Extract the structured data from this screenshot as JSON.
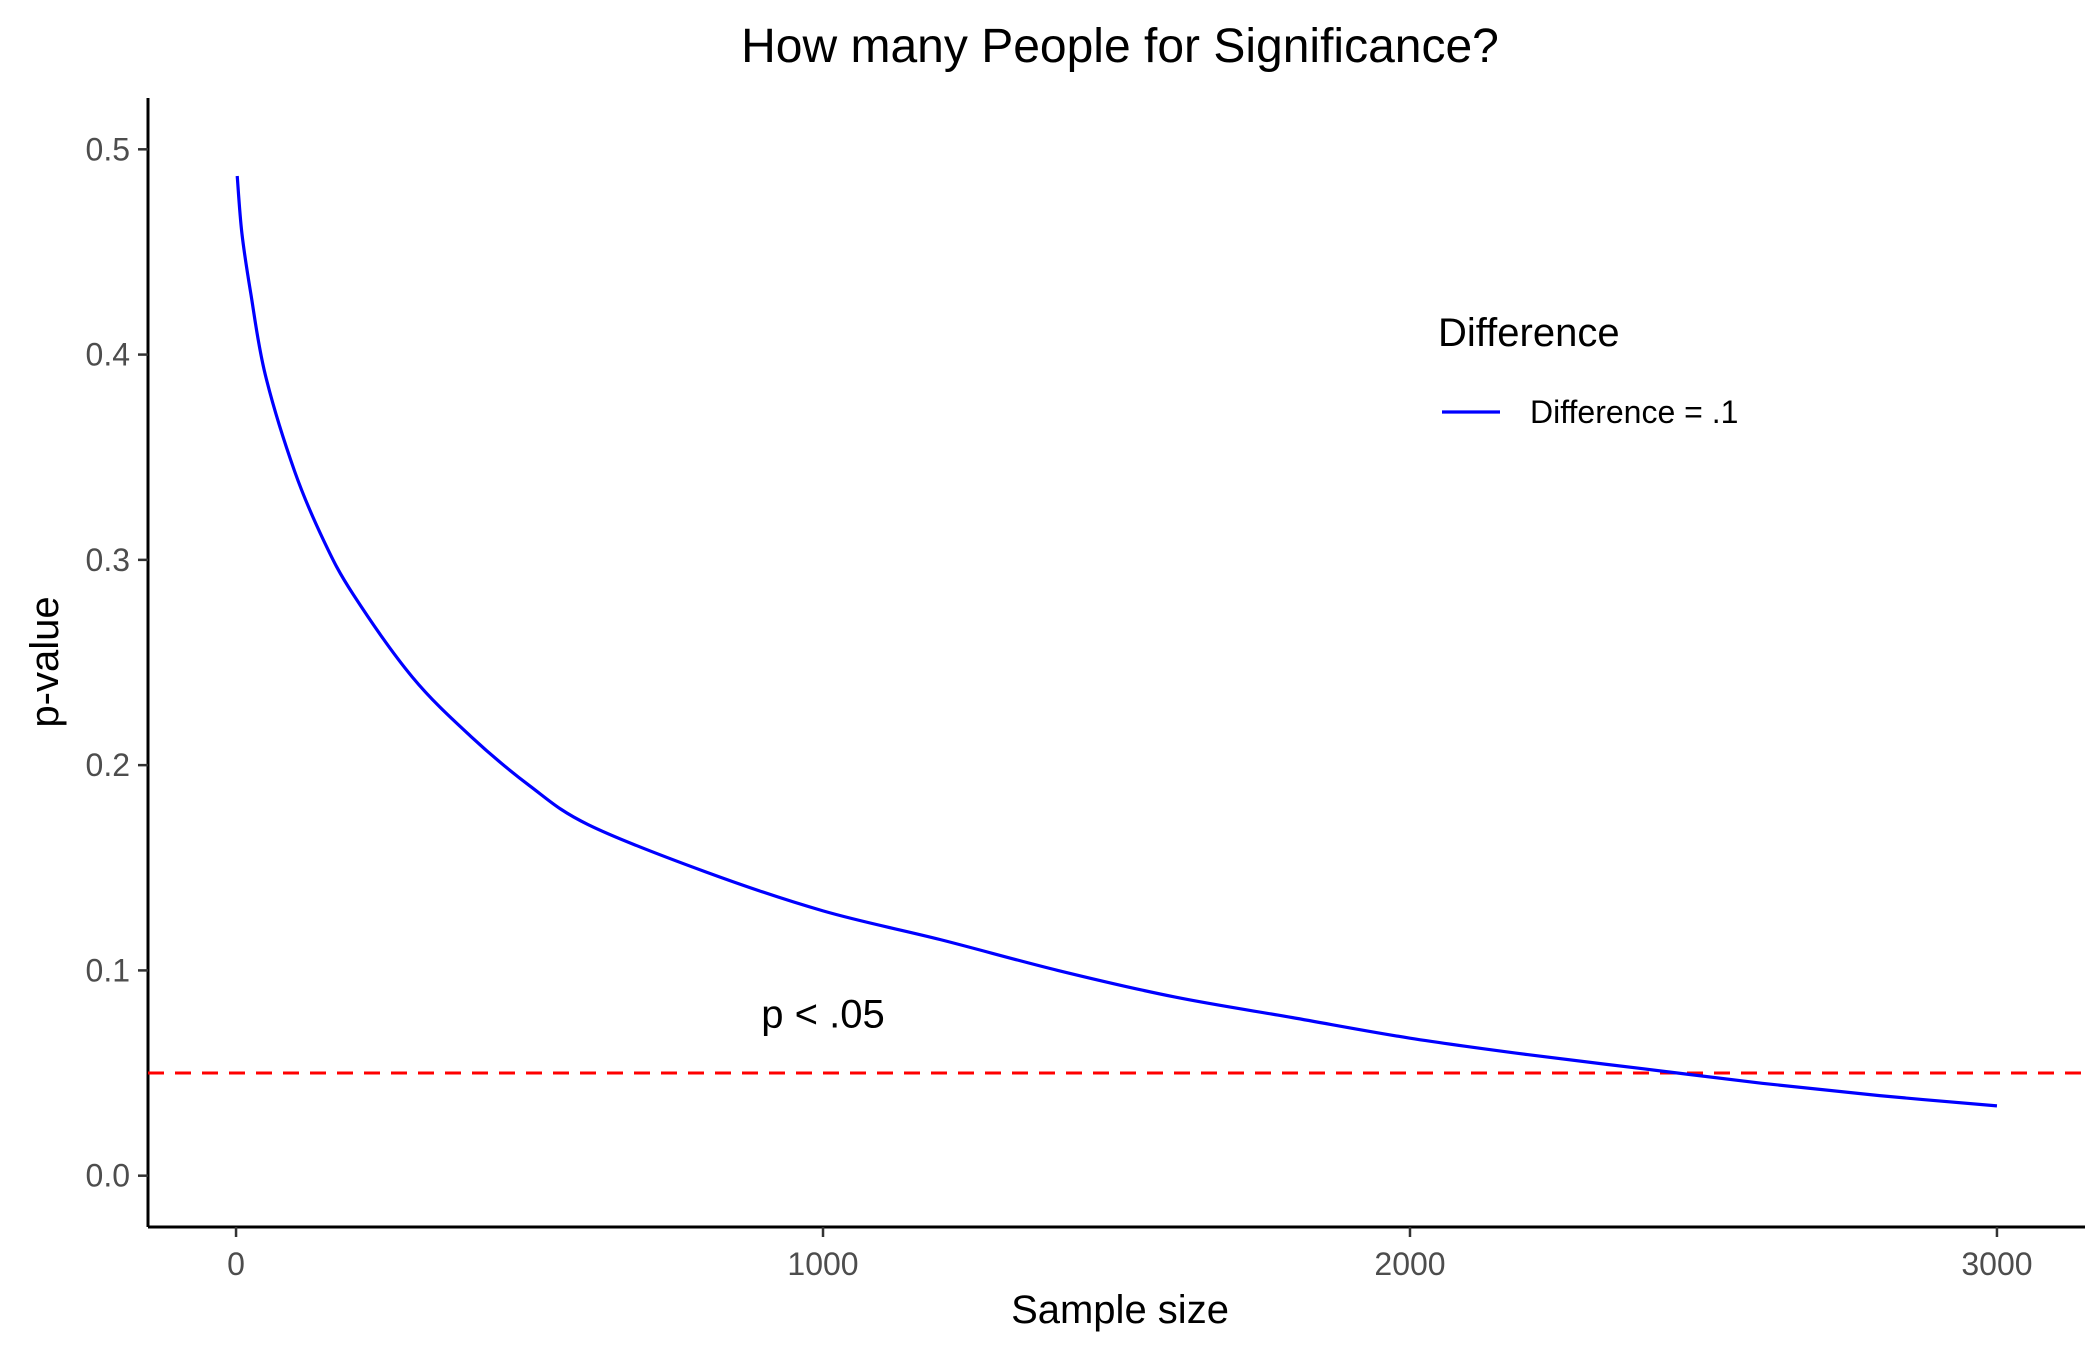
{
  "chart_data": {
    "type": "line",
    "title": "How many People for Significance?",
    "xlabel": "Sample size",
    "ylabel": "p-value",
    "xlim": [
      -150,
      3150
    ],
    "ylim": [
      -0.025,
      0.525
    ],
    "x_ticks": [
      0,
      1000,
      2000,
      3000
    ],
    "x_tick_labels": [
      "0",
      "1000",
      "2000",
      "3000"
    ],
    "y_ticks": [
      0.0,
      0.1,
      0.2,
      0.3,
      0.4,
      0.5
    ],
    "y_tick_labels": [
      "0.0",
      "0.1",
      "0.2",
      "0.3",
      "0.4",
      "0.5"
    ],
    "grid": false,
    "legend": {
      "title": "Difference",
      "position": "top-right",
      "entries": [
        {
          "label": "Difference = .1",
          "color": "#0000ff"
        }
      ]
    },
    "series": [
      {
        "name": "Difference = .1",
        "color": "#0000ff",
        "x": [
          2,
          10,
          25,
          50,
          100,
          150,
          200,
          300,
          400,
          500,
          600,
          800,
          1000,
          1200,
          1400,
          1600,
          1800,
          2000,
          2200,
          2400,
          2600,
          2800,
          3000
        ],
        "y": [
          0.487,
          0.459,
          0.43,
          0.39,
          0.343,
          0.309,
          0.283,
          0.243,
          0.214,
          0.19,
          0.171,
          0.148,
          0.129,
          0.115,
          0.1,
          0.087,
          0.077,
          0.067,
          0.059,
          0.052,
          0.045,
          0.039,
          0.034
        ]
      }
    ],
    "reference_lines": [
      {
        "orientation": "horizontal",
        "y": 0.05,
        "color": "#ff0000",
        "style": "dashed"
      }
    ],
    "annotations": [
      {
        "text": "p < .05",
        "x": 1000,
        "y": 0.079
      }
    ]
  }
}
